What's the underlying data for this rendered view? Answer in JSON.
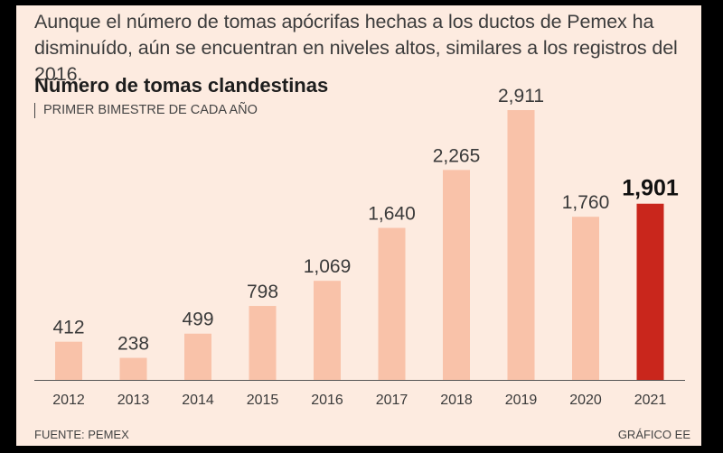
{
  "lede": "Aunque el número de tomas apócrifas hechas a los ductos de Pemex ha disminuído, aún se encuentran en niveles altos, similares a los registros del 2016.",
  "footer": {
    "source": "FUENTE: PEMEX",
    "credit": "GRÁFICO EE"
  },
  "colors": {
    "background": "#fdebe0",
    "bar": "#f9c2a9",
    "highlight_bar": "#c9261c",
    "text": "#2a2a2a"
  },
  "chart_data": {
    "type": "bar",
    "title": "Número de tomas clandestinas",
    "subtitle": "PRIMER BIMESTRE DE CADA AÑO",
    "xlabel": "",
    "ylabel": "",
    "categories": [
      "2012",
      "2013",
      "2014",
      "2015",
      "2016",
      "2017",
      "2018",
      "2019",
      "2020",
      "2021"
    ],
    "values": [
      412,
      238,
      499,
      798,
      1069,
      1640,
      2265,
      2911,
      1760,
      1901
    ],
    "value_labels": [
      "412",
      "238",
      "499",
      "798",
      "1,069",
      "1,640",
      "2,265",
      "2,911",
      "1,760",
      "1,901"
    ],
    "highlight_category": "2021",
    "ylim": [
      0,
      2911
    ],
    "grid": false,
    "legend": "none"
  }
}
